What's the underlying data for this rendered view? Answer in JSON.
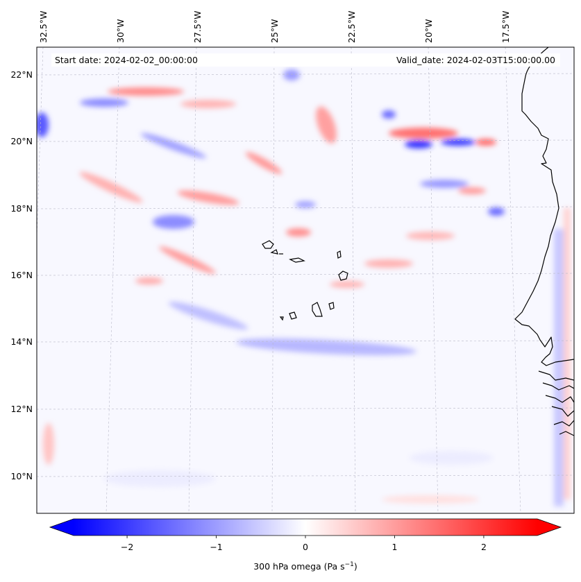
{
  "header": {
    "start_date": "Start date: 2024-02-02_00:00:00",
    "valid_date": "Valid_date: 2024-02-03T15:00:00.00"
  },
  "axes": {
    "lon_labels": [
      "32.5°W",
      "30°W",
      "27.5°W",
      "25°W",
      "22.5°W",
      "20°W",
      "17.5°W"
    ],
    "lat_labels": [
      "22°N",
      "20°N",
      "18°N",
      "16°N",
      "14°N",
      "12°N",
      "10°N"
    ]
  },
  "colorbar": {
    "label": "300 hPa omega (Pa s",
    "label_sup": "−1",
    "label_end": ")",
    "ticks": [
      "−2",
      "−1",
      "0",
      "1",
      "2"
    ],
    "min": -2.6,
    "max": 2.6,
    "low_color": "#0000ff",
    "mid_color": "#ffffff",
    "high_color": "#ff0000"
  },
  "field": {
    "variable": "300 hPa omega",
    "colormap": "bwr"
  }
}
